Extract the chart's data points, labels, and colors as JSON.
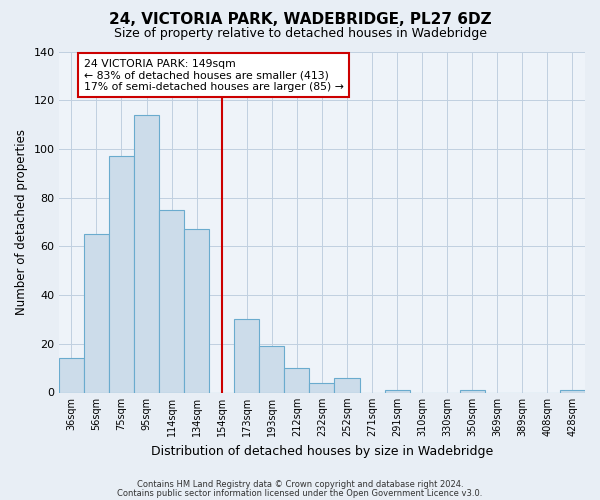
{
  "title": "24, VICTORIA PARK, WADEBRIDGE, PL27 6DZ",
  "subtitle": "Size of property relative to detached houses in Wadebridge",
  "xlabel": "Distribution of detached houses by size in Wadebridge",
  "ylabel": "Number of detached properties",
  "categories": [
    "36sqm",
    "56sqm",
    "75sqm",
    "95sqm",
    "114sqm",
    "134sqm",
    "154sqm",
    "173sqm",
    "193sqm",
    "212sqm",
    "232sqm",
    "252sqm",
    "271sqm",
    "291sqm",
    "310sqm",
    "330sqm",
    "350sqm",
    "369sqm",
    "389sqm",
    "408sqm",
    "428sqm"
  ],
  "values": [
    14,
    65,
    97,
    114,
    75,
    67,
    0,
    30,
    19,
    10,
    4,
    6,
    0,
    1,
    0,
    0,
    1,
    0,
    0,
    0,
    1
  ],
  "bar_color": "#ccdcea",
  "bar_edge_color": "#6aabce",
  "bar_width": 1.0,
  "vline_x": 6.0,
  "vline_color": "#cc0000",
  "annotation_line1": "24 VICTORIA PARK: 149sqm",
  "annotation_line2": "← 83% of detached houses are smaller (413)",
  "annotation_line3": "17% of semi-detached houses are larger (85) →",
  "annotation_box_color": "#cc0000",
  "ylim": [
    0,
    140
  ],
  "yticks": [
    0,
    20,
    40,
    60,
    80,
    100,
    120,
    140
  ],
  "footer1": "Contains HM Land Registry data © Crown copyright and database right 2024.",
  "footer2": "Contains public sector information licensed under the Open Government Licence v3.0.",
  "bg_color": "#e8eef5",
  "plot_bg_color": "#eef3f9",
  "grid_color": "#c0cfe0"
}
